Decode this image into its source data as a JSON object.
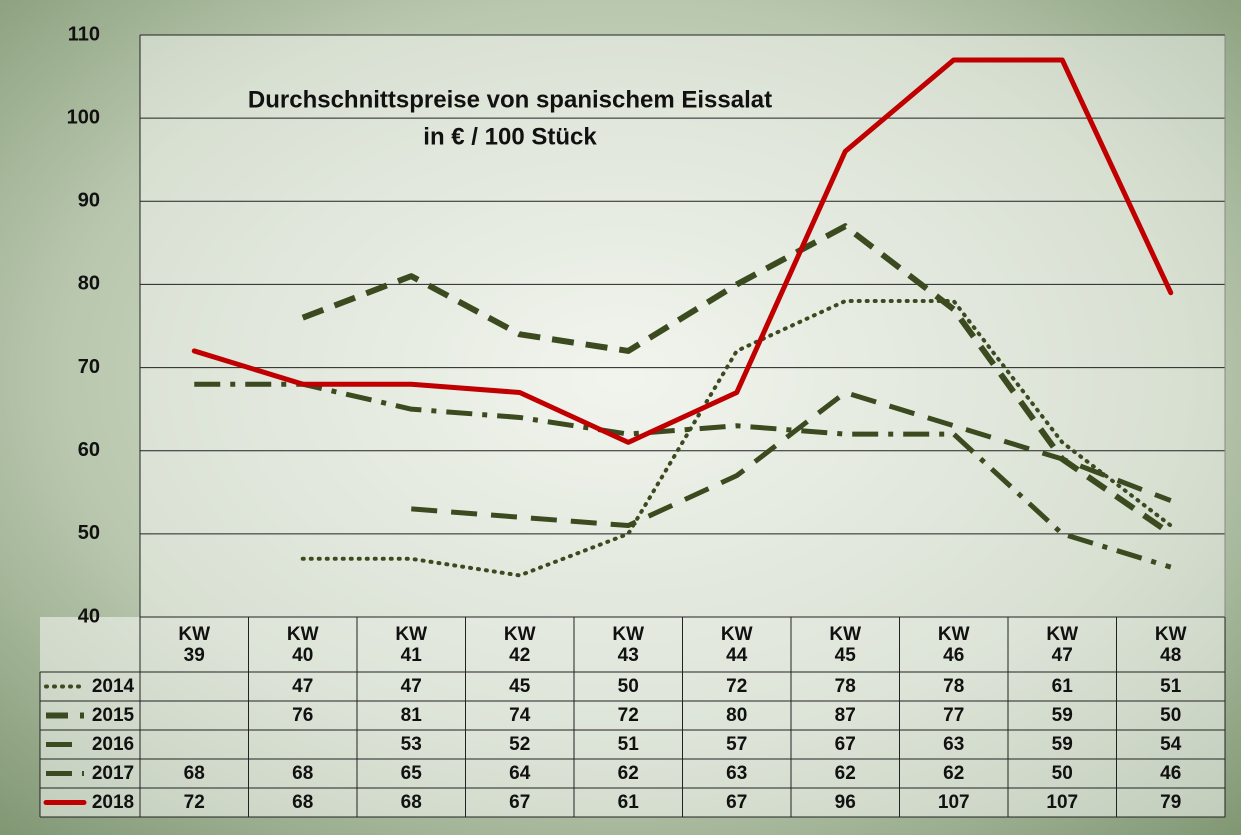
{
  "chart_data": {
    "type": "line",
    "title": "Durchschnittspreise von spanischem Eissalat",
    "subtitle": "in € / 100 Stück",
    "categories": [
      "KW\n39",
      "KW\n40",
      "KW\n41",
      "KW\n42",
      "KW\n43",
      "KW\n44",
      "KW\n45",
      "KW\n46",
      "KW\n47",
      "KW\n48"
    ],
    "ylim": [
      40,
      110
    ],
    "yticks": [
      40,
      50,
      60,
      70,
      80,
      90,
      100,
      110
    ],
    "grid": true,
    "series": [
      {
        "name": "2014",
        "color": "#3b4a1f",
        "line_style": "dotted",
        "values": [
          null,
          47,
          47,
          45,
          50,
          72,
          78,
          78,
          61,
          51
        ]
      },
      {
        "name": "2015",
        "color": "#3b4a1f",
        "line_style": "dashed",
        "values": [
          null,
          76,
          81,
          74,
          72,
          80,
          87,
          77,
          59,
          50
        ]
      },
      {
        "name": "2016",
        "color": "#3b4a1f",
        "line_style": "long-dashed",
        "values": [
          null,
          null,
          53,
          52,
          51,
          57,
          67,
          63,
          59,
          54
        ]
      },
      {
        "name": "2017",
        "color": "#3b4a1f",
        "line_style": "dash-dot",
        "values": [
          68,
          68,
          65,
          64,
          62,
          63,
          62,
          62,
          50,
          46
        ]
      },
      {
        "name": "2018",
        "color": "#c00000",
        "line_style": "solid",
        "values": [
          72,
          68,
          68,
          67,
          61,
          67,
          96,
          107,
          107,
          79
        ]
      }
    ]
  }
}
